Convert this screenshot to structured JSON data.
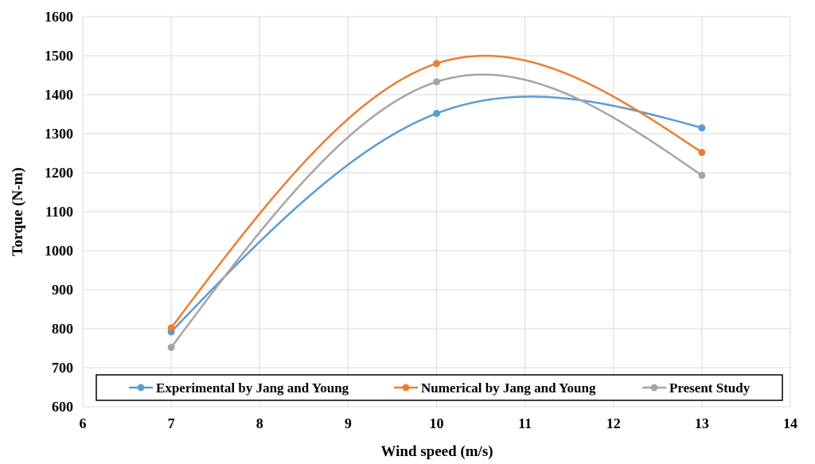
{
  "chart_data": {
    "type": "line",
    "title": "",
    "xlabel": "Wind speed (m/s)",
    "ylabel": "Torque (N-m)",
    "xlim": [
      6,
      14
    ],
    "ylim": [
      600,
      1600
    ],
    "x_ticks": [
      6,
      7,
      8,
      9,
      10,
      11,
      12,
      13,
      14
    ],
    "y_ticks": [
      600,
      700,
      800,
      900,
      1000,
      1100,
      1200,
      1300,
      1400,
      1500,
      1600
    ],
    "grid": true,
    "smooth": true,
    "legend_position": "bottom-inside",
    "x": [
      7,
      10,
      13
    ],
    "series": [
      {
        "name": "Experimental by Jang and Young",
        "color": "#5b9bd5",
        "values": [
          792,
          1352,
          1315
        ]
      },
      {
        "name": "Numerical by Jang and Young",
        "color": "#ed7d31",
        "values": [
          802,
          1480,
          1252
        ]
      },
      {
        "name": "Present Study",
        "color": "#a5a5a5",
        "values": [
          752,
          1433,
          1193
        ]
      }
    ]
  }
}
